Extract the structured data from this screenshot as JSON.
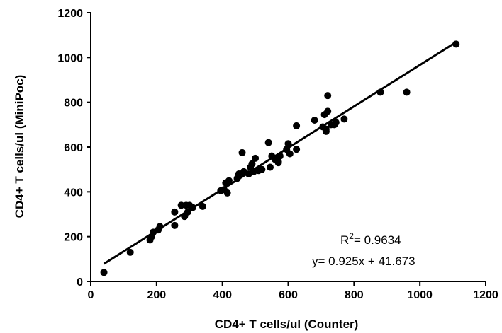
{
  "chart_data": {
    "type": "scatter",
    "xlabel": "CD4+ T cells/ul (Counter)",
    "ylabel": "CD4+ T cells/ul (MiniPoc)",
    "xlim": [
      0,
      1200
    ],
    "ylim": [
      0,
      1200
    ],
    "x_ticks": [
      "0",
      "200",
      "400",
      "600",
      "800",
      "1000",
      "1200"
    ],
    "y_ticks": [
      "0",
      "200",
      "400",
      "600",
      "800",
      "1000",
      "1200"
    ],
    "grid": false,
    "points": [
      [
        40,
        40
      ],
      [
        120,
        130
      ],
      [
        180,
        185
      ],
      [
        185,
        200
      ],
      [
        190,
        220
      ],
      [
        205,
        230
      ],
      [
        210,
        245
      ],
      [
        255,
        250
      ],
      [
        255,
        310
      ],
      [
        275,
        340
      ],
      [
        285,
        290
      ],
      [
        290,
        340
      ],
      [
        295,
        310
      ],
      [
        300,
        340
      ],
      [
        310,
        330
      ],
      [
        340,
        335
      ],
      [
        395,
        405
      ],
      [
        405,
        410
      ],
      [
        410,
        440
      ],
      [
        415,
        395
      ],
      [
        420,
        450
      ],
      [
        445,
        460
      ],
      [
        450,
        480
      ],
      [
        460,
        575
      ],
      [
        465,
        490
      ],
      [
        480,
        480
      ],
      [
        485,
        510
      ],
      [
        490,
        525
      ],
      [
        495,
        490
      ],
      [
        500,
        550
      ],
      [
        510,
        495
      ],
      [
        520,
        500
      ],
      [
        540,
        620
      ],
      [
        545,
        510
      ],
      [
        550,
        560
      ],
      [
        560,
        545
      ],
      [
        570,
        535
      ],
      [
        570,
        530
      ],
      [
        575,
        560
      ],
      [
        595,
        590
      ],
      [
        600,
        615
      ],
      [
        605,
        570
      ],
      [
        625,
        695
      ],
      [
        625,
        590
      ],
      [
        680,
        720
      ],
      [
        705,
        690
      ],
      [
        710,
        745
      ],
      [
        715,
        680
      ],
      [
        715,
        670
      ],
      [
        720,
        830
      ],
      [
        720,
        760
      ],
      [
        730,
        700
      ],
      [
        740,
        700
      ],
      [
        745,
        710
      ],
      [
        770,
        725
      ],
      [
        880,
        845
      ],
      [
        960,
        845
      ],
      [
        1110,
        1060
      ]
    ],
    "fit_line": {
      "slope": 0.925,
      "intercept": 41.673,
      "x_range": [
        40,
        1110
      ]
    },
    "annotations": {
      "r2_prefix": "R",
      "r2_sup": "2",
      "r2_value": "= 0.9634",
      "equation": "y= 0.925x + 41.673"
    }
  }
}
